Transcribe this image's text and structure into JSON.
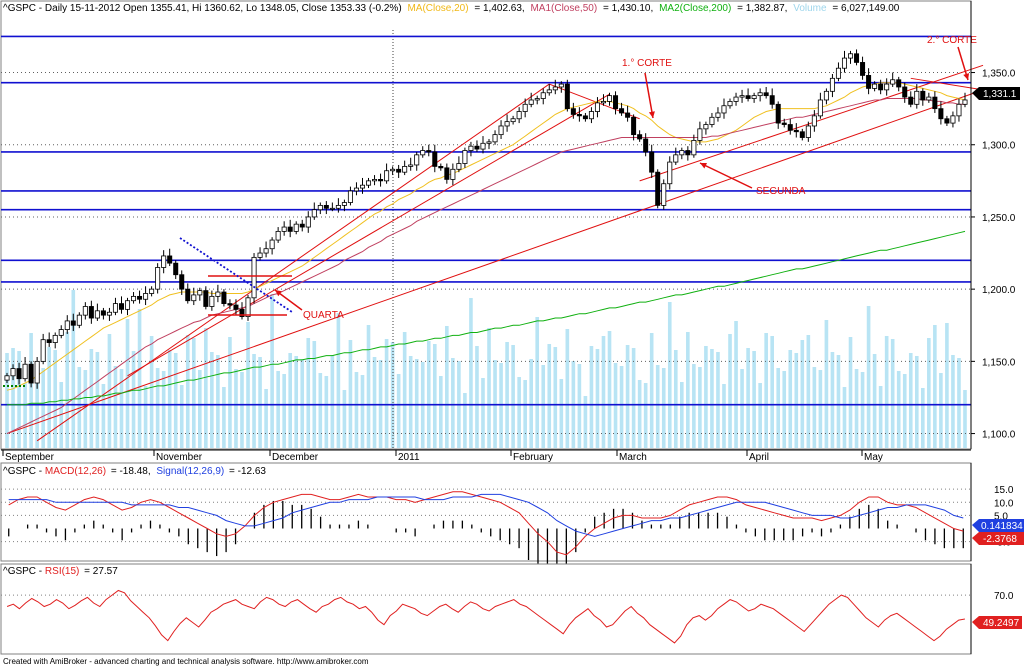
{
  "header": {
    "symbol_line": "^GSPC - Daily 15-11-2012 Open 1355.41, Hi 1360.62, Lo 1348.05, Close 1353.33 (-0.2%)",
    "ma_label": "MA(Close,20)",
    "ma_value": "= 1,402.63,",
    "ma1_label": "MA1(Close,50)",
    "ma1_value": "= 1,430.10,",
    "ma2_label": "MA2(Close,200)",
    "ma2_value": "= 1,382.87,",
    "volume_label": "Volume",
    "volume_value": "= 6,027,149.00"
  },
  "macd_header": {
    "prefix": "^GSPC - ",
    "macd_label": "MACD(12,26)",
    "macd_value": "= -18.48,",
    "signal_label": "Signal(12,26,9)",
    "signal_value": "= -12.63"
  },
  "rsi_header": {
    "prefix": "^GSPC - ",
    "rsi_label": "RSI(15)",
    "rsi_value": "= 27.57"
  },
  "footer": "Created with AmiBroker - advanced charting and technical analysis software. http://www.amibroker.com",
  "colors": {
    "candle": "#000000",
    "ma20": "#f0c020",
    "ma50": "#c04060",
    "ma200": "#10b010",
    "trendline": "#e01010",
    "horizontal_level": "#1010d0",
    "volume": "#b8e4f4",
    "macd": "#e02020",
    "signal": "#2040e0",
    "rsi": "#e02020"
  },
  "annotations": {
    "primeiro_corte": "1.° CORTE",
    "segundo_corte": "2.° CORTE",
    "segunda": "SEGUNDA",
    "quarta": "QUARTA"
  },
  "chart_data": [
    {
      "type": "candlestick",
      "title": "^GSPC - Daily 15-11-2012",
      "x_tick_labels": [
        "September",
        "November",
        "December",
        "2011",
        "February",
        "March",
        "April",
        "May"
      ],
      "y_ticks": [
        "1,350.0",
        "1,300.0",
        "1,250.0",
        "1,200.0",
        "1,150.0",
        "1,100.0"
      ],
      "ylim": [
        1090,
        1385
      ],
      "last_price_label": "1,331.1",
      "horizontal_levels": [
        1375,
        1343,
        1295,
        1268,
        1255,
        1220,
        1205,
        1120
      ],
      "close": [
        1140,
        1145,
        1138,
        1148,
        1135,
        1150,
        1165,
        1163,
        1168,
        1172,
        1178,
        1175,
        1182,
        1188,
        1180,
        1185,
        1182,
        1184,
        1190,
        1186,
        1192,
        1195,
        1193,
        1197,
        1200,
        1215,
        1223,
        1218,
        1210,
        1200,
        1192,
        1196,
        1199,
        1188,
        1195,
        1198,
        1190,
        1189,
        1186,
        1181,
        1194,
        1222,
        1225,
        1228,
        1234,
        1240,
        1243,
        1240,
        1245,
        1243,
        1250,
        1255,
        1258,
        1256,
        1256,
        1258,
        1260,
        1268,
        1270,
        1272,
        1275,
        1276,
        1275,
        1282,
        1283,
        1281,
        1285,
        1286,
        1293,
        1296,
        1295,
        1285,
        1284,
        1276,
        1283,
        1287,
        1296,
        1299,
        1297,
        1301,
        1302,
        1307,
        1313,
        1316,
        1318,
        1323,
        1328,
        1331,
        1332,
        1336,
        1338,
        1340,
        1342,
        1325,
        1321,
        1320,
        1318,
        1323,
        1329,
        1330,
        1334,
        1325,
        1322,
        1319,
        1307,
        1304,
        1295,
        1281,
        1258,
        1273,
        1288,
        1293,
        1296,
        1293,
        1303,
        1311,
        1314,
        1319,
        1322,
        1327,
        1330,
        1333,
        1334,
        1332,
        1334,
        1336,
        1334,
        1328,
        1315,
        1314,
        1310,
        1309,
        1305,
        1313,
        1320,
        1331,
        1337,
        1346,
        1353,
        1360,
        1363,
        1357,
        1348,
        1339,
        1342,
        1338,
        1342,
        1345,
        1340,
        1333,
        1328,
        1337,
        1331,
        1333,
        1325,
        1318,
        1315,
        1320,
        1328,
        1331
      ],
      "series": [
        {
          "name": "MA(Close,20)",
          "values": [
            1130,
            1131,
            1133,
            1135,
            1137,
            1140,
            1143,
            1146,
            1149,
            1152,
            1155,
            1158,
            1161,
            1164,
            1167,
            1170,
            1173,
            1175,
            1177,
            1179,
            1181,
            1183,
            1185,
            1187,
            1189,
            1192,
            1194,
            1196,
            1197,
            1198,
            1198,
            1198,
            1198,
            1198,
            1197,
            1197,
            1197,
            1197,
            1197,
            1197,
            1198,
            1200,
            1202,
            1204,
            1206,
            1208,
            1210,
            1212,
            1214,
            1216,
            1219,
            1222,
            1225,
            1228,
            1231,
            1234,
            1237,
            1240,
            1243,
            1246,
            1249,
            1252,
            1254,
            1257,
            1259,
            1262,
            1264,
            1266,
            1269,
            1271,
            1274,
            1276,
            1277,
            1279,
            1280,
            1282,
            1284,
            1286,
            1288,
            1290,
            1292,
            1294,
            1296,
            1298,
            1300,
            1303,
            1306,
            1309,
            1312,
            1315,
            1318,
            1321,
            1323,
            1325,
            1326,
            1327,
            1328,
            1329,
            1330,
            1330,
            1330,
            1329,
            1328,
            1327,
            1325,
            1322,
            1320,
            1317,
            1313,
            1310,
            1307,
            1305,
            1304,
            1303,
            1302,
            1302,
            1302,
            1303,
            1304,
            1306,
            1308,
            1310,
            1313,
            1316,
            1319,
            1321,
            1323,
            1324,
            1325,
            1325,
            1325,
            1325,
            1325,
            1325,
            1325,
            1326,
            1327,
            1329,
            1331,
            1333,
            1336,
            1338,
            1340,
            1341,
            1342,
            1343,
            1343,
            1343,
            1343,
            1342,
            1341,
            1340,
            1339,
            1338,
            1337,
            1336,
            1334,
            1333,
            1332,
            1331
          ]
        },
        {
          "name": "MA1(Close,50)",
          "values": [
            1100,
            1102,
            1104,
            1106,
            1108,
            1110,
            1112,
            1114,
            1116,
            1118,
            1121,
            1124,
            1127,
            1130,
            1133,
            1136,
            1139,
            1142,
            1145,
            1148,
            1151,
            1154,
            1157,
            1160,
            1162,
            1165,
            1167,
            1169,
            1171,
            1173,
            1175,
            1177,
            1178,
            1180,
            1182,
            1183,
            1184,
            1185,
            1186,
            1187,
            1188,
            1190,
            1192,
            1194,
            1196,
            1197,
            1199,
            1201,
            1203,
            1205,
            1207,
            1209,
            1211,
            1213,
            1215,
            1217,
            1220,
            1222,
            1224,
            1226,
            1229,
            1231,
            1233,
            1236,
            1238,
            1240,
            1242,
            1244,
            1247,
            1249,
            1251,
            1253,
            1255,
            1257,
            1259,
            1261,
            1263,
            1265,
            1267,
            1269,
            1271,
            1273,
            1275,
            1277,
            1279,
            1281,
            1283,
            1285,
            1287,
            1289,
            1291,
            1293,
            1295,
            1296,
            1297,
            1298,
            1299,
            1300,
            1301,
            1302,
            1303,
            1304,
            1305,
            1305,
            1305,
            1305,
            1305,
            1305,
            1305,
            1305,
            1305,
            1305,
            1305,
            1305,
            1305,
            1305,
            1305,
            1306,
            1306,
            1307,
            1308,
            1309,
            1310,
            1311,
            1312,
            1313,
            1314,
            1315,
            1316,
            1317,
            1318,
            1319,
            1319,
            1320,
            1321,
            1322,
            1323,
            1324,
            1325,
            1326,
            1327,
            1328,
            1329,
            1330,
            1331,
            1331,
            1332,
            1332,
            1332,
            1332,
            1332,
            1332,
            1331,
            1331,
            1330,
            1330,
            1329,
            1329,
            1328,
            1328
          ]
        },
        {
          "name": "MA2(Close,200)",
          "values": [
            1120,
            1120,
            1120,
            1120,
            1121,
            1121,
            1121,
            1122,
            1122,
            1123,
            1123,
            1124,
            1124,
            1125,
            1125,
            1126,
            1126,
            1127,
            1128,
            1128,
            1129,
            1130,
            1130,
            1131,
            1132,
            1133,
            1133,
            1134,
            1135,
            1136,
            1137,
            1137,
            1138,
            1139,
            1140,
            1141,
            1142,
            1142,
            1143,
            1144,
            1145,
            1146,
            1146,
            1147,
            1148,
            1148,
            1149,
            1150,
            1151,
            1151,
            1152,
            1152,
            1153,
            1154,
            1154,
            1155,
            1156,
            1156,
            1157,
            1158,
            1158,
            1159,
            1160,
            1160,
            1161,
            1162,
            1162,
            1163,
            1164,
            1164,
            1165,
            1166,
            1166,
            1167,
            1168,
            1168,
            1169,
            1170,
            1170,
            1171,
            1172,
            1173,
            1173,
            1174,
            1175,
            1175,
            1176,
            1177,
            1178,
            1178,
            1179,
            1180,
            1180,
            1181,
            1182,
            1183,
            1183,
            1184,
            1185,
            1186,
            1187,
            1187,
            1188,
            1189,
            1190,
            1191,
            1191,
            1192,
            1193,
            1194,
            1195,
            1196,
            1196,
            1197,
            1198,
            1199,
            1200,
            1201,
            1202,
            1202,
            1203,
            1204,
            1205,
            1206,
            1207,
            1208,
            1209,
            1210,
            1211,
            1212,
            1213,
            1214,
            1214,
            1215,
            1216,
            1217,
            1218,
            1219,
            1220,
            1221,
            1222,
            1223,
            1224,
            1225,
            1226,
            1227,
            1227,
            1228,
            1229,
            1230,
            1231,
            1232,
            1233,
            1234,
            1235,
            1236,
            1237,
            1238,
            1239,
            1240
          ]
        }
      ],
      "volume_note": "volume histogram in pale blue behind the candles"
    },
    {
      "type": "line",
      "title": "MACD(12,26)",
      "y_ticks": [
        "15.0",
        "10.0",
        "5.0",
        "-5.0"
      ],
      "ylim": [
        -12,
        20
      ],
      "last_value_labels": [
        "0.141834",
        "-2.3768"
      ],
      "series": [
        {
          "name": "MACD(12,26)",
          "values": [
            9,
            11,
            12,
            12,
            10,
            8,
            7,
            9,
            11,
            12,
            11,
            9,
            7,
            8,
            10,
            11,
            10,
            8,
            6,
            4,
            2,
            0,
            -2,
            -3,
            -2,
            1,
            5,
            8,
            10,
            11,
            12,
            13,
            13,
            12,
            11,
            11,
            12,
            13,
            12,
            12,
            12,
            11,
            11,
            10,
            11,
            12,
            13,
            14,
            14,
            13,
            12,
            11,
            10,
            8,
            6,
            2,
            -2,
            -5,
            -9,
            -10,
            -7,
            -3,
            0,
            2,
            4,
            5,
            5,
            4,
            4,
            4,
            5,
            7,
            9,
            10,
            11,
            12,
            12,
            11,
            9,
            8,
            7,
            6,
            5,
            4,
            4,
            4,
            3,
            4,
            5,
            7,
            10,
            12,
            12,
            10,
            9,
            9,
            8,
            6,
            4,
            2,
            0,
            -1
          ]
        },
        {
          "name": "Signal(12,26,9)",
          "values": [
            11,
            11,
            11,
            11,
            11,
            10,
            10,
            10,
            10,
            10,
            10,
            10,
            10,
            9,
            9,
            9,
            9,
            9,
            8,
            8,
            7,
            6,
            5,
            3,
            2,
            1,
            1,
            2,
            3,
            4,
            6,
            7,
            8,
            9,
            10,
            10,
            11,
            11,
            11,
            12,
            12,
            12,
            12,
            12,
            11,
            11,
            11,
            12,
            12,
            12,
            13,
            13,
            13,
            12,
            11,
            10,
            8,
            6,
            3,
            1,
            -1,
            -2,
            -3,
            -2,
            -1,
            0,
            1,
            2,
            3,
            3,
            4,
            4,
            5,
            6,
            7,
            8,
            9,
            10,
            10,
            10,
            10,
            9,
            8,
            7,
            6,
            5,
            5,
            5,
            4,
            4,
            5,
            6,
            7,
            8,
            8,
            9,
            9,
            9,
            8,
            7,
            5,
            4
          ]
        }
      ],
      "histogram_note": "black MACD histogram bars around zero line"
    },
    {
      "type": "line",
      "title": "RSI(15)",
      "y_ticks": [
        "70.0"
      ],
      "ylim": [
        20,
        85
      ],
      "last_value_label": "49.2497",
      "series": [
        {
          "name": "RSI(15)",
          "values": [
            60,
            62,
            58,
            63,
            67,
            64,
            60,
            62,
            66,
            63,
            58,
            61,
            65,
            68,
            63,
            60,
            66,
            70,
            74,
            72,
            65,
            60,
            55,
            50,
            43,
            35,
            30,
            38,
            45,
            50,
            46,
            42,
            48,
            55,
            58,
            62,
            64,
            66,
            62,
            60,
            58,
            64,
            68,
            66,
            62,
            60,
            64,
            66,
            62,
            58,
            55,
            60,
            62,
            66,
            68,
            64,
            62,
            58,
            60,
            55,
            48,
            44,
            52,
            56,
            62,
            60,
            58,
            54,
            52,
            56,
            60,
            62,
            58,
            55,
            60,
            64,
            62,
            58,
            56,
            60,
            62,
            64,
            66,
            62,
            60,
            56,
            52,
            48,
            44,
            40,
            36,
            44,
            50,
            54,
            58,
            52,
            48,
            42,
            44,
            50,
            56,
            60,
            54,
            50,
            44,
            40,
            36,
            32,
            28,
            34,
            44,
            50,
            52,
            48,
            52,
            58,
            62,
            66,
            64,
            60,
            56,
            58,
            62,
            60,
            58,
            54,
            50,
            46,
            42,
            38,
            44,
            50,
            56,
            62,
            66,
            70,
            68,
            62,
            56,
            50,
            46,
            42,
            48,
            52,
            54,
            50,
            46,
            42,
            38,
            34,
            30,
            34,
            40,
            44,
            48,
            49
          ]
        }
      ]
    }
  ]
}
